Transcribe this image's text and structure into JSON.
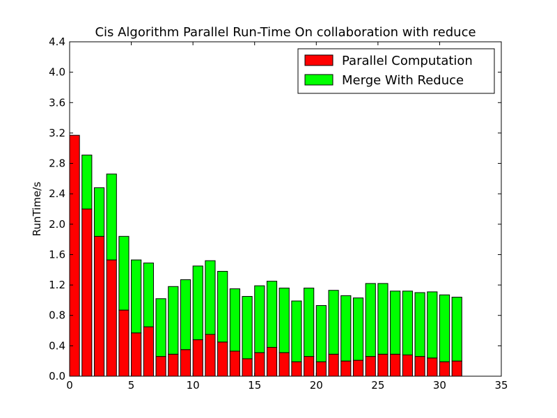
{
  "chart_data": {
    "type": "bar",
    "stacked": true,
    "title": "Cis Algorithm Parallel Run-Time On collaboration with reduce",
    "xlabel": "",
    "ylabel": "RunTime/s",
    "xlim": [
      0,
      35
    ],
    "ylim": [
      0,
      4.4
    ],
    "xticks": [
      0,
      5,
      10,
      15,
      20,
      25,
      30,
      35
    ],
    "yticks": [
      0.0,
      0.4,
      0.8,
      1.2,
      1.6,
      2.0,
      2.4,
      2.8,
      3.2,
      3.6,
      4.0,
      4.4
    ],
    "xtick_labels": [
      "0",
      "5",
      "10",
      "15",
      "20",
      "25",
      "30",
      "35"
    ],
    "ytick_labels": [
      "0.0",
      "0.4",
      "0.8",
      "1.2",
      "1.6",
      "2.0",
      "2.4",
      "2.8",
      "3.2",
      "3.6",
      "4.0",
      "4.4"
    ],
    "x": [
      1,
      2,
      3,
      4,
      5,
      6,
      7,
      8,
      9,
      10,
      11,
      12,
      13,
      14,
      15,
      16,
      17,
      18,
      19,
      20,
      21,
      22,
      23,
      24,
      25,
      26,
      27,
      28,
      29,
      30,
      31,
      32
    ],
    "legend_position": "upper-right",
    "series": [
      {
        "name": "Parallel Computation",
        "color": "#ff0000",
        "values": [
          3.17,
          2.2,
          1.84,
          1.53,
          0.87,
          0.57,
          0.65,
          0.26,
          0.29,
          0.35,
          0.48,
          0.55,
          0.45,
          0.33,
          0.23,
          0.31,
          0.38,
          0.31,
          0.19,
          0.26,
          0.19,
          0.29,
          0.2,
          0.21,
          0.26,
          0.29,
          0.29,
          0.28,
          0.26,
          0.24,
          0.19,
          0.2
        ]
      },
      {
        "name": "Merge With Reduce",
        "color": "#00ff00",
        "values": [
          0.0,
          0.71,
          0.64,
          1.13,
          0.97,
          0.96,
          0.84,
          0.76,
          0.89,
          0.92,
          0.97,
          0.97,
          0.93,
          0.82,
          0.82,
          0.88,
          0.87,
          0.85,
          0.8,
          0.9,
          0.74,
          0.84,
          0.86,
          0.82,
          0.96,
          0.93,
          0.83,
          0.84,
          0.84,
          0.87,
          0.88,
          0.84
        ]
      }
    ]
  }
}
